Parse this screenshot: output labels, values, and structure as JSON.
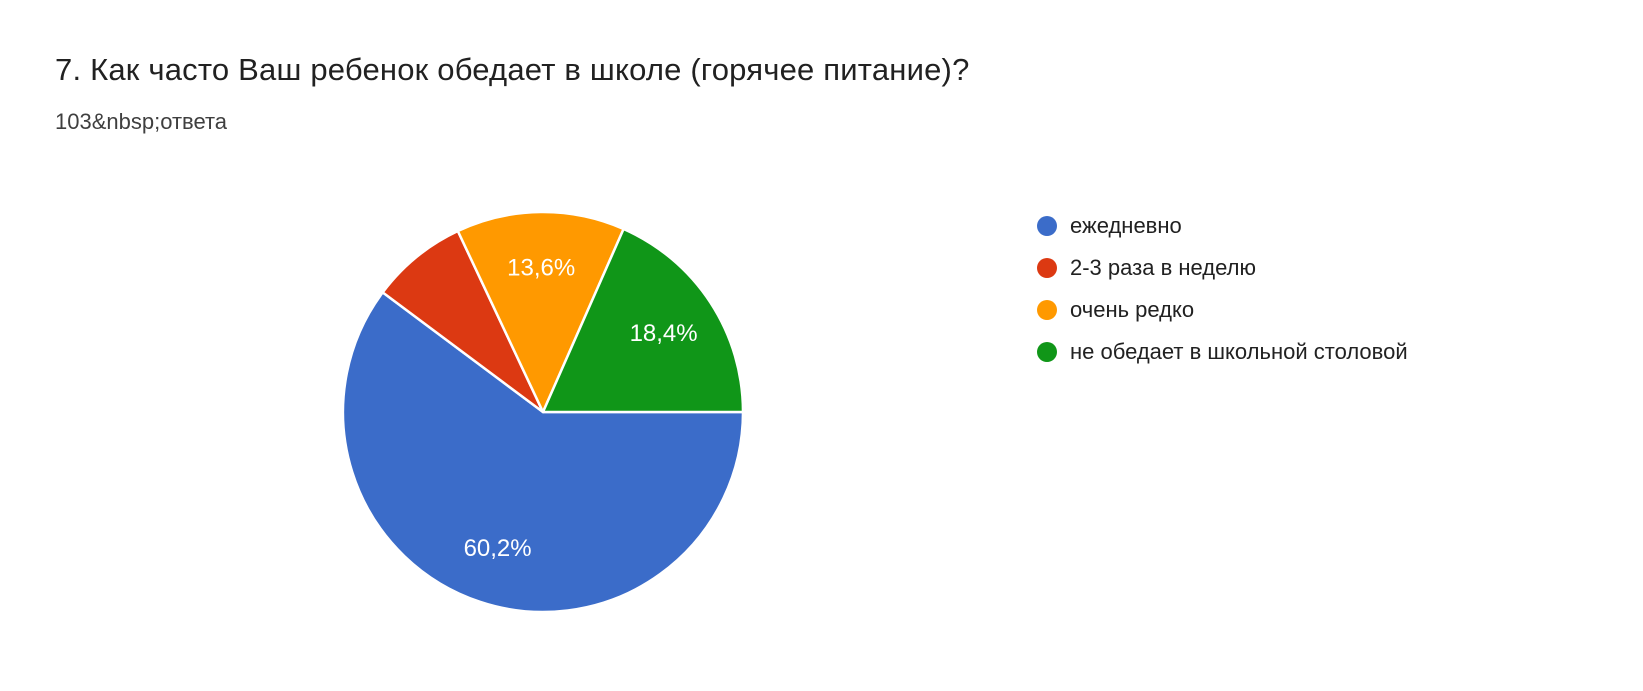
{
  "header": {
    "title": "7. Как часто Ваш ребенок обедает в школе (горячее питание)?",
    "subtitle": "103&nbsp;ответа"
  },
  "chart_data": {
    "type": "pie",
    "title": "7. Как часто Ваш ребенок обедает в школе (горячее питание)?",
    "responses_label": "103&nbsp;ответа",
    "responses_count": 103,
    "start_angle_deg": 0,
    "direction": "clockwise",
    "legend_position": "right",
    "slice_border_color": "#ffffff",
    "label_color": "#ffffff",
    "slices": [
      {
        "label": "ежедневно",
        "value_pct": 60.2,
        "display_label": "60,2%",
        "color": "#3b6cc9"
      },
      {
        "label": "2-3 раза в неделю",
        "value_pct": 7.8,
        "display_label": "",
        "color": "#dc3912"
      },
      {
        "label": "очень редко",
        "value_pct": 13.6,
        "display_label": "13,6%",
        "color": "#ff9900"
      },
      {
        "label": "не обедает в школьной столовой",
        "value_pct": 18.4,
        "display_label": "18,4%",
        "color": "#109618"
      }
    ]
  }
}
